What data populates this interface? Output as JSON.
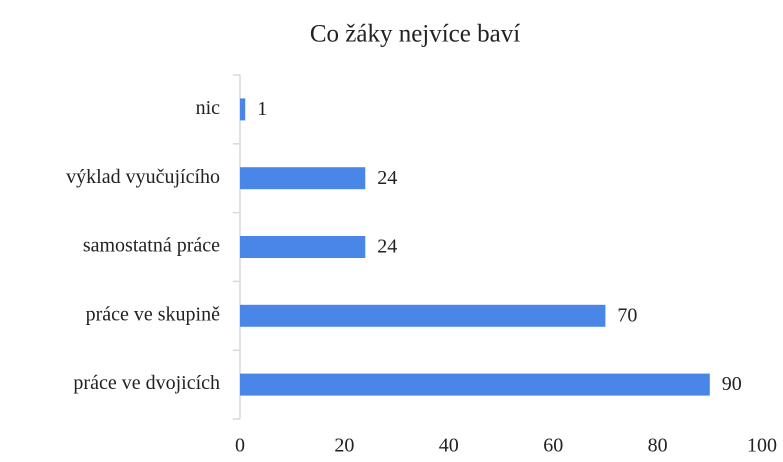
{
  "chart_data": {
    "type": "bar",
    "orientation": "horizontal",
    "title": "Co žáky nejvíce baví",
    "categories": [
      "nic",
      "výklad vyučujícího",
      "samostatná práce",
      "práce ve skupině",
      "práce ve dvojicích"
    ],
    "values": [
      1,
      24,
      24,
      70,
      90
    ],
    "color": "#4a86e8",
    "xlim": [
      0,
      100
    ],
    "xticks": [
      0,
      20,
      40,
      60,
      80,
      100
    ],
    "grid": false,
    "data_labels": true
  }
}
